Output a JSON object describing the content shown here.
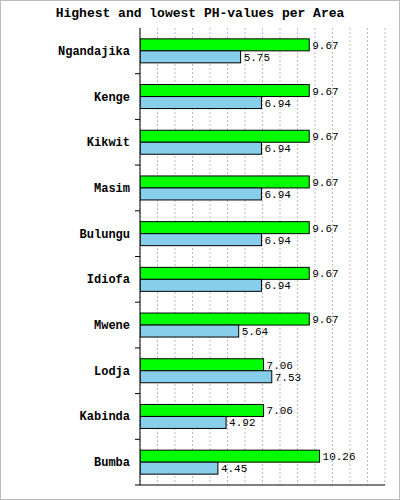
{
  "chart_data": {
    "type": "bar",
    "orientation": "horizontal",
    "title": "Highest and lowest PH-values per Area",
    "categories": [
      "Ngandajika",
      "Kenge",
      "Kikwit",
      "Masim",
      "Bulungu",
      "Idiofa",
      "Mwene",
      "Lodja",
      "Kabinda",
      "Bumba"
    ],
    "series": [
      {
        "color": "#00ff00",
        "values": [
          9.67,
          9.67,
          9.67,
          9.67,
          9.67,
          9.67,
          9.67,
          7.06,
          7.06,
          10.26
        ]
      },
      {
        "color": "#87ceeb",
        "values": [
          5.75,
          6.94,
          6.94,
          6.94,
          6.94,
          6.94,
          5.64,
          7.53,
          4.92,
          4.45
        ]
      }
    ],
    "xlim": [
      0,
      14
    ],
    "xticks": [
      0,
      1,
      2,
      3,
      4,
      5,
      6,
      7,
      8,
      9,
      10,
      11,
      12,
      13,
      14
    ],
    "grid": true,
    "data_labels": true,
    "tick_labels": "y"
  }
}
